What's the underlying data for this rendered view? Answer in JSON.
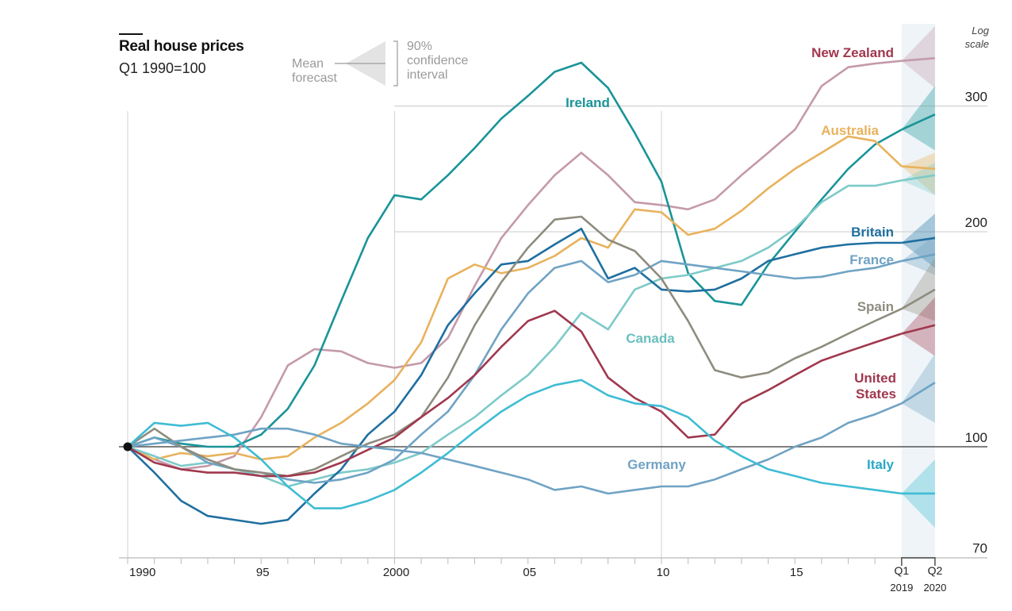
{
  "header": {
    "title": "Real house prices",
    "subtitle": "Q1 1990=100",
    "scale_note_1": "Log",
    "scale_note_2": "scale"
  },
  "legend": {
    "mean_1": "Mean",
    "mean_2": "forecast",
    "ci_1": "90%",
    "ci_2": "confidence",
    "ci_3": "interval"
  },
  "chart_data": {
    "type": "line",
    "title": "Real house prices",
    "subtitle": "Q1 1990=100",
    "yscale": "log",
    "ylim": [
      70,
      360
    ],
    "yticks": [
      70,
      100,
      200,
      300
    ],
    "ytick_labels": [
      "70",
      "100",
      "200",
      "300"
    ],
    "xlim": [
      1990,
      2020.25
    ],
    "xticks": [
      1990,
      1995,
      2000,
      2005,
      2010,
      2015
    ],
    "xtick_labels": [
      "1990",
      "95",
      "2000",
      "05",
      "10",
      "15"
    ],
    "forecast_labels": [
      {
        "line1": "Q1",
        "line2": "2019"
      },
      {
        "line1": "Q2",
        "line2": "2020"
      }
    ],
    "forecast_start": 2019.0,
    "forecast_end": 2020.25,
    "baseline": 100,
    "grid": true,
    "series": [
      {
        "name": "New Zealand",
        "label": "New Zealand",
        "color": "#c49aaa",
        "label_color": "#a0384e",
        "x": [
          1990,
          1991,
          1992,
          1993,
          1994,
          1995,
          1996,
          1997,
          1998,
          1999,
          2000,
          2001,
          2002,
          2003,
          2004,
          2005,
          2006,
          2007,
          2008,
          2009,
          2010,
          2011,
          2012,
          2013,
          2014,
          2015,
          2016,
          2017,
          2018,
          2019
        ],
        "y": [
          100,
          96,
          93,
          94,
          97,
          110,
          130,
          137,
          136,
          131,
          129,
          131,
          142,
          168,
          196,
          218,
          240,
          258,
          240,
          220,
          218,
          215,
          222,
          240,
          258,
          278,
          320,
          340,
          344,
          347
        ],
        "forecast": {
          "mean": 350,
          "low": 318,
          "high": 388
        }
      },
      {
        "name": "Ireland",
        "label": "Ireland",
        "color": "#1a9498",
        "label_color": "#1a9498",
        "x": [
          1990,
          1991,
          1992,
          1993,
          1994,
          1995,
          1996,
          1997,
          1998,
          1999,
          2000,
          2001,
          2002,
          2003,
          2004,
          2005,
          2006,
          2007,
          2008,
          2009,
          2010,
          2011,
          2012,
          2013,
          2014,
          2015,
          2016,
          2017,
          2018,
          2019
        ],
        "y": [
          100,
          103,
          101,
          100,
          100,
          104,
          113,
          130,
          160,
          196,
          225,
          222,
          240,
          262,
          288,
          310,
          335,
          345,
          318,
          275,
          235,
          175,
          160,
          158,
          180,
          200,
          222,
          245,
          265,
          278
        ],
        "forecast": {
          "mean": 292,
          "low": 260,
          "high": 320
        }
      },
      {
        "name": "Australia",
        "label": "Australia",
        "color": "#e8b25d",
        "label_color": "#e8b25d",
        "x": [
          1990,
          1991,
          1992,
          1993,
          1994,
          1995,
          1996,
          1997,
          1998,
          1999,
          2000,
          2001,
          2002,
          2003,
          2004,
          2005,
          2006,
          2007,
          2008,
          2009,
          2010,
          2011,
          2012,
          2013,
          2014,
          2015,
          2016,
          2017,
          2018,
          2019
        ],
        "y": [
          100,
          96,
          98,
          97,
          98,
          96,
          97,
          103,
          108,
          115,
          124,
          140,
          172,
          180,
          175,
          178,
          185,
          196,
          190,
          215,
          213,
          198,
          202,
          214,
          230,
          245,
          258,
          272,
          268,
          247
        ],
        "forecast": {
          "mean": 245,
          "low": 225,
          "high": 258
        }
      },
      {
        "name": "Canada",
        "label": "Canada",
        "color": "#7dcac9",
        "label_color": "#6bbfbe",
        "x": [
          1990,
          1991,
          1992,
          1993,
          1994,
          1995,
          1996,
          1997,
          1998,
          1999,
          2000,
          2001,
          2002,
          2003,
          2004,
          2005,
          2006,
          2007,
          2008,
          2009,
          2010,
          2011,
          2012,
          2013,
          2014,
          2015,
          2016,
          2017,
          2018,
          2019
        ],
        "y": [
          100,
          97,
          94,
          95,
          93,
          91,
          88,
          90,
          92,
          93,
          95,
          98,
          104,
          110,
          118,
          126,
          138,
          154,
          146,
          166,
          172,
          174,
          178,
          182,
          190,
          202,
          220,
          232,
          232,
          236
        ],
        "forecast": {
          "mean": 240,
          "low": 225,
          "high": 250
        }
      },
      {
        "name": "Britain",
        "label": "Britain",
        "color": "#1f6fa0",
        "label_color": "#1f6fa0",
        "x": [
          1990,
          1991,
          1992,
          1993,
          1994,
          1995,
          1996,
          1997,
          1998,
          1999,
          2000,
          2001,
          2002,
          2003,
          2004,
          2005,
          2006,
          2007,
          2008,
          2009,
          2010,
          2011,
          2012,
          2013,
          2014,
          2015,
          2016,
          2017,
          2018,
          2019
        ],
        "y": [
          100,
          92,
          84,
          80,
          79,
          78,
          79,
          86,
          93,
          104,
          112,
          126,
          148,
          164,
          180,
          182,
          192,
          202,
          172,
          178,
          166,
          165,
          166,
          172,
          182,
          186,
          190,
          192,
          193,
          193
        ],
        "forecast": {
          "mean": 196,
          "low": 178,
          "high": 212
        }
      },
      {
        "name": "France",
        "label": "France",
        "color": "#6fa3c4",
        "label_color": "#6fa3c4",
        "x": [
          1990,
          1991,
          1992,
          1993,
          1994,
          1995,
          1996,
          1997,
          1998,
          1999,
          2000,
          2001,
          2002,
          2003,
          2004,
          2005,
          2006,
          2007,
          2008,
          2009,
          2010,
          2011,
          2012,
          2013,
          2014,
          2015,
          2016,
          2017,
          2018,
          2019
        ],
        "y": [
          100,
          103,
          100,
          95,
          93,
          92,
          90,
          89,
          90,
          92,
          96,
          104,
          112,
          126,
          146,
          164,
          178,
          182,
          170,
          174,
          182,
          180,
          178,
          176,
          174,
          172,
          173,
          176,
          178,
          182
        ],
        "forecast": {
          "mean": 186,
          "low": 174,
          "high": 198
        }
      },
      {
        "name": "Spain",
        "label": "Spain",
        "color": "#8e8c7e",
        "label_color": "#8e8c7e",
        "x": [
          1990,
          1991,
          1992,
          1993,
          1994,
          1995,
          1996,
          1997,
          1998,
          1999,
          2000,
          2001,
          2002,
          2003,
          2004,
          2005,
          2006,
          2007,
          2008,
          2009,
          2010,
          2011,
          2012,
          2013,
          2014,
          2015,
          2016,
          2017,
          2018,
          2019
        ],
        "y": [
          100,
          106,
          100,
          96,
          93,
          92,
          91,
          93,
          97,
          101,
          104,
          110,
          125,
          148,
          170,
          190,
          208,
          210,
          195,
          188,
          172,
          150,
          128,
          125,
          127,
          133,
          138,
          144,
          150,
          156
        ],
        "forecast": {
          "mean": 166,
          "low": 150,
          "high": 184
        }
      },
      {
        "name": "United States",
        "label": "United States",
        "color": "#a0384e",
        "label_color": "#a0384e",
        "x": [
          1990,
          1991,
          1992,
          1993,
          1994,
          1995,
          1996,
          1997,
          1998,
          1999,
          2000,
          2001,
          2002,
          2003,
          2004,
          2005,
          2006,
          2007,
          2008,
          2009,
          2010,
          2011,
          2012,
          2013,
          2014,
          2015,
          2016,
          2017,
          2018,
          2019
        ],
        "y": [
          100,
          95,
          93,
          92,
          92,
          91,
          91,
          92,
          95,
          99,
          103,
          110,
          117,
          126,
          138,
          150,
          155,
          145,
          125,
          117,
          112,
          103,
          104,
          115,
          120,
          126,
          132,
          136,
          140,
          144
        ],
        "forecast": {
          "mean": 148,
          "low": 134,
          "high": 162
        }
      },
      {
        "name": "Germany",
        "label": "Germany",
        "color": "#6fa3c4",
        "label_color": "#6fa3c4",
        "x": [
          1990,
          1991,
          1992,
          1993,
          1994,
          1995,
          1996,
          1997,
          1998,
          1999,
          2000,
          2001,
          2002,
          2003,
          2004,
          2005,
          2006,
          2007,
          2008,
          2009,
          2010,
          2011,
          2012,
          2013,
          2014,
          2015,
          2016,
          2017,
          2018,
          2019
        ],
        "y": [
          100,
          101,
          102,
          103,
          104,
          106,
          106,
          104,
          101,
          100,
          99,
          98,
          96,
          94,
          92,
          90,
          87,
          88,
          86,
          87,
          88,
          88,
          90,
          93,
          96,
          100,
          103,
          108,
          111,
          115
        ],
        "forecast": {
          "mean": 123,
          "low": 108,
          "high": 135
        }
      },
      {
        "name": "Italy",
        "label": "Italy",
        "color": "#3fbcd4",
        "label_color": "#2aa8c4",
        "x": [
          1990,
          1991,
          1992,
          1993,
          1994,
          1995,
          1996,
          1997,
          1998,
          1999,
          2000,
          2001,
          2002,
          2003,
          2004,
          2005,
          2006,
          2007,
          2008,
          2009,
          2010,
          2011,
          2012,
          2013,
          2014,
          2015,
          2016,
          2017,
          2018,
          2019
        ],
        "y": [
          100,
          108,
          107,
          108,
          103,
          96,
          88,
          82,
          82,
          84,
          87,
          92,
          98,
          105,
          112,
          118,
          122,
          124,
          118,
          115,
          114,
          110,
          102,
          97,
          93,
          91,
          89,
          88,
          87,
          86
        ],
        "forecast": {
          "mean": 86,
          "low": 77,
          "high": 96
        }
      }
    ]
  }
}
